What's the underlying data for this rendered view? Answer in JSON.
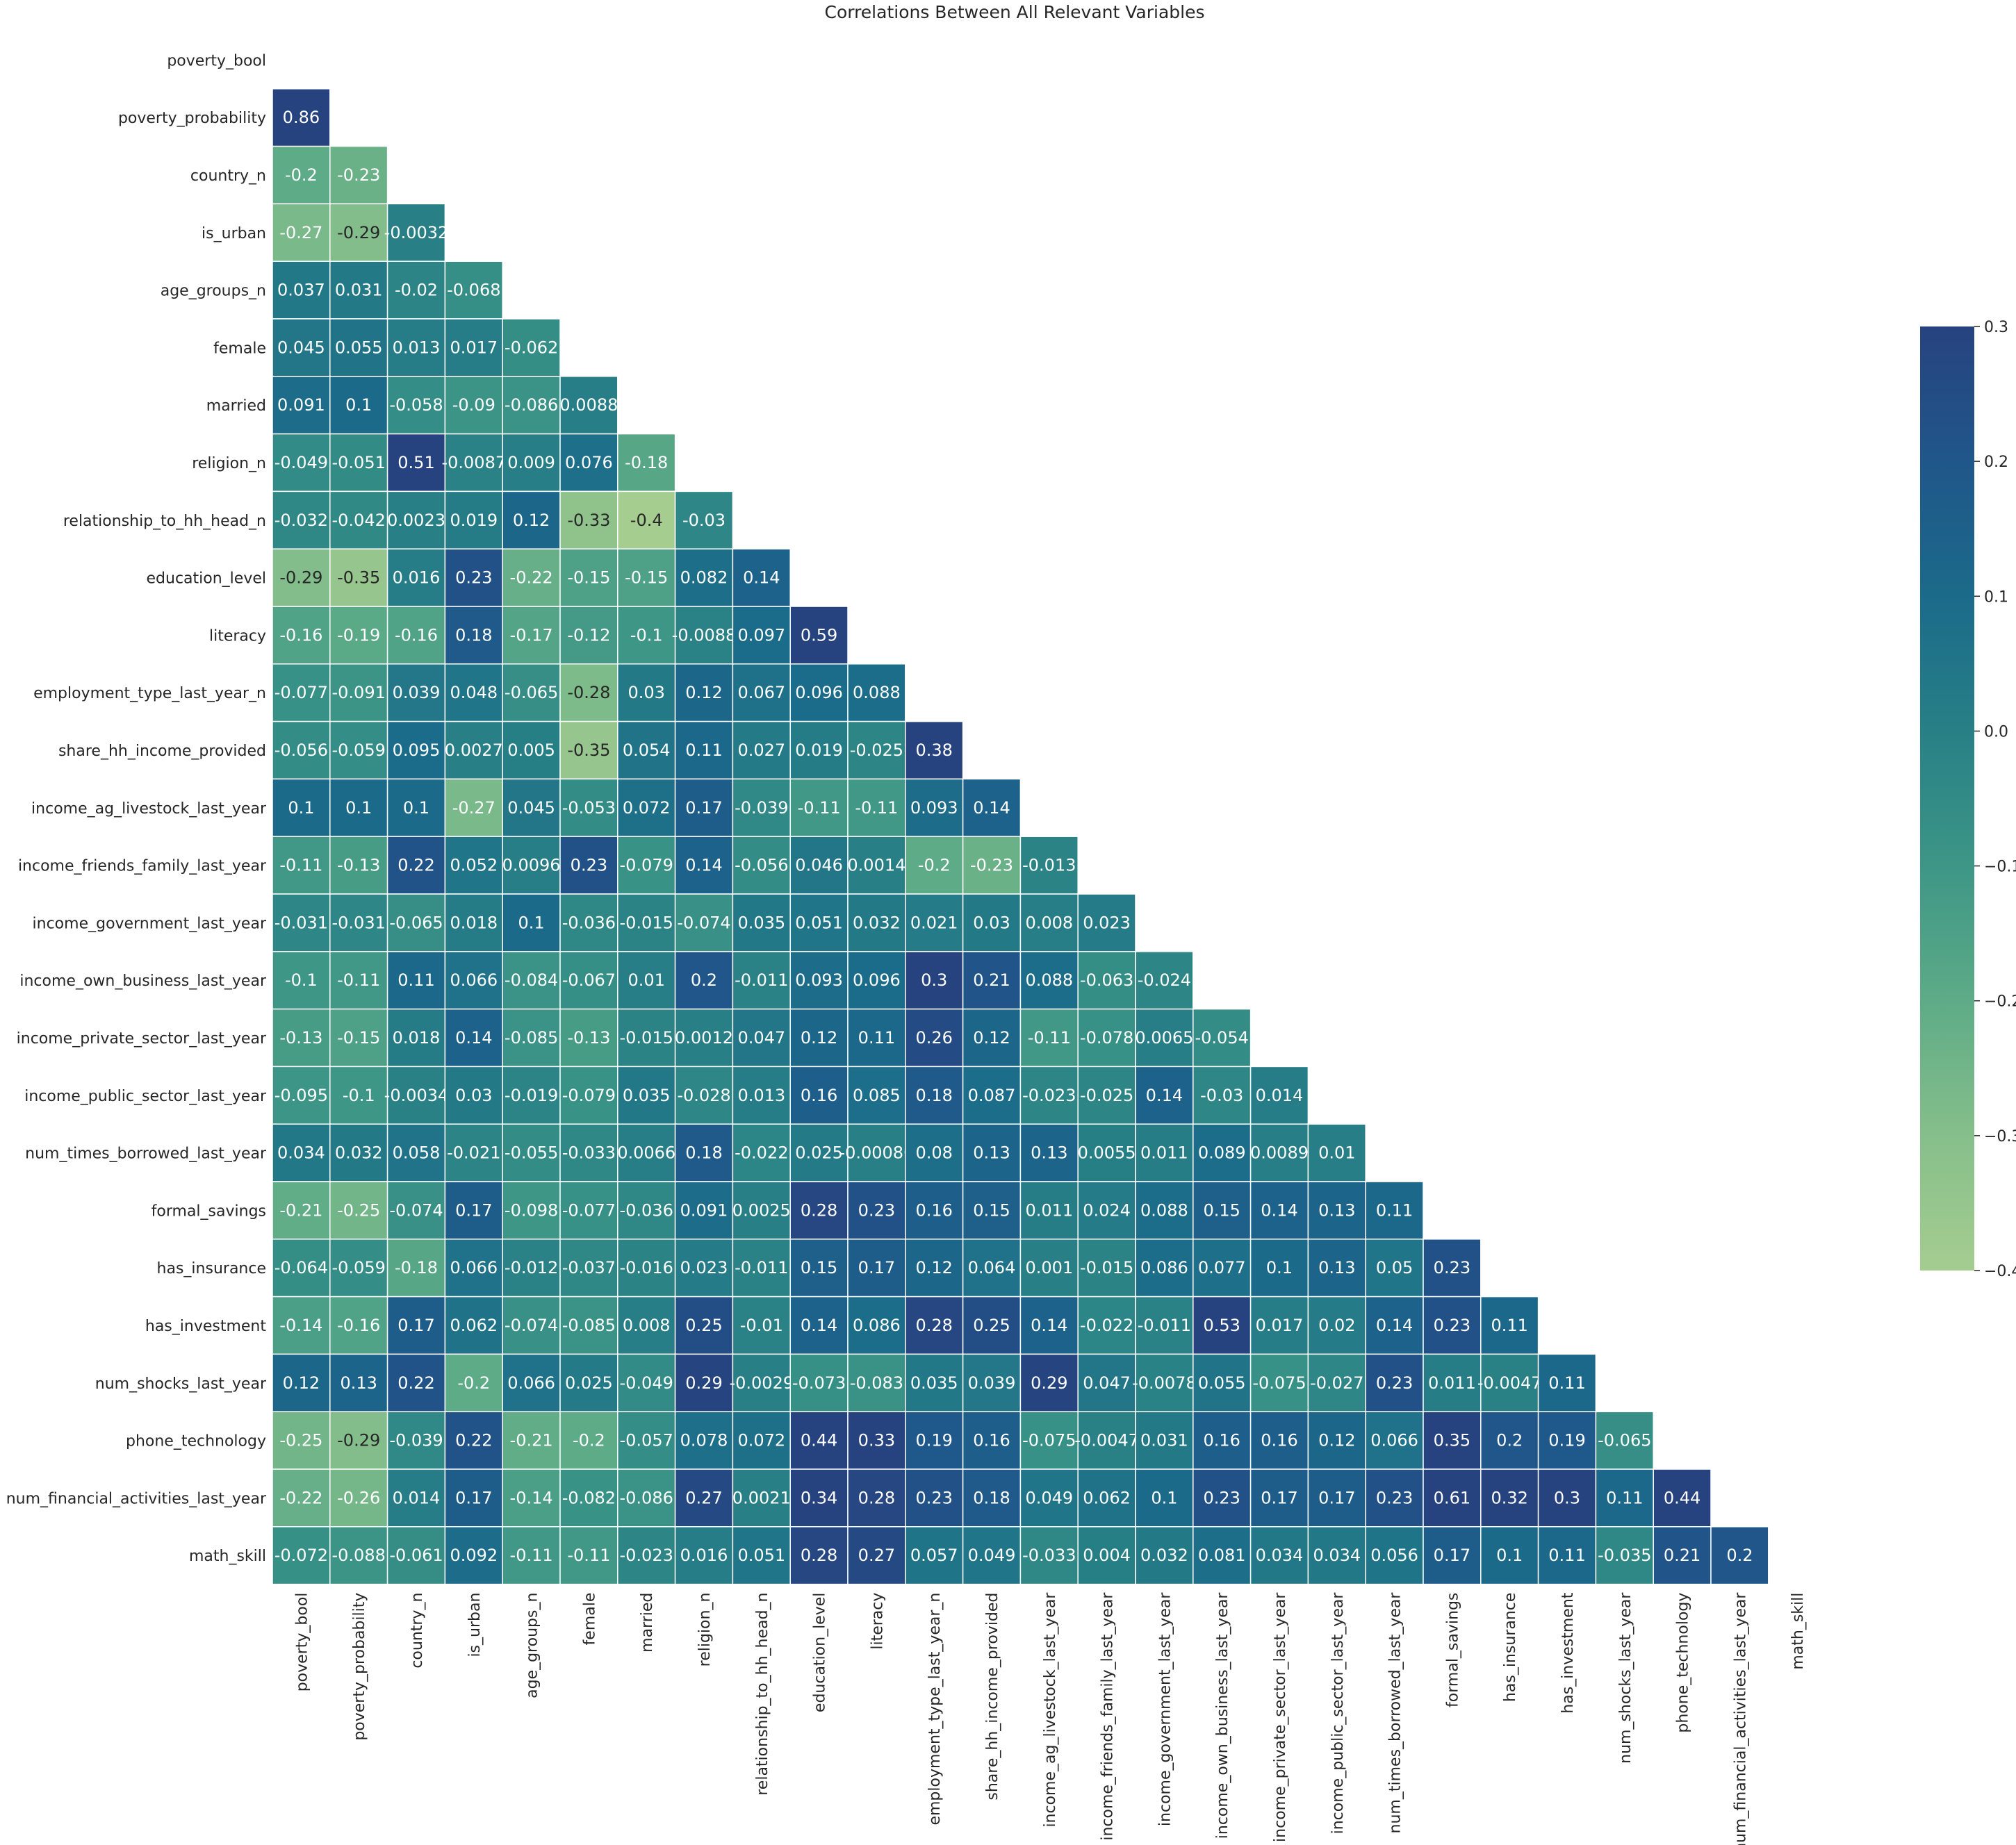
{
  "chart_data": {
    "type": "heatmap",
    "title": "Correlations Between All Relevant Variables",
    "variables": [
      "poverty_bool",
      "poverty_probability",
      "country_n",
      "is_urban",
      "age_groups_n",
      "female",
      "married",
      "religion_n",
      "relationship_to_hh_head_n",
      "education_level",
      "literacy",
      "employment_type_last_year_n",
      "share_hh_income_provided",
      "income_ag_livestock_last_year",
      "income_friends_family_last_year",
      "income_government_last_year",
      "income_own_business_last_year",
      "income_private_sector_last_year",
      "income_public_sector_last_year",
      "num_times_borrowed_last_year",
      "formal_savings",
      "has_insurance",
      "has_investment",
      "num_shocks_last_year",
      "phone_technology",
      "num_financial_activities_last_year",
      "math_skill"
    ],
    "mask": "lower-triangle (diagonal and upper triangle hidden)",
    "colormap": "crest",
    "vmin": -0.4,
    "vmax": 0.3,
    "colorbar_ticks": [
      0.3,
      0.2,
      0.1,
      0.0,
      -0.1,
      -0.2,
      -0.3,
      -0.4
    ],
    "colorbar_tick_labels": [
      "0.3",
      "0.2",
      "0.1",
      "0.0",
      "−0.1",
      "−0.2",
      "−0.3",
      "−0.4"
    ],
    "annotations": [
      [],
      [
        "0.86"
      ],
      [
        "-0.2",
        "-0.23"
      ],
      [
        "-0.27",
        "-0.29",
        "-0.0032"
      ],
      [
        "0.037",
        "0.031",
        "-0.02",
        "-0.068"
      ],
      [
        "0.045",
        "0.055",
        "0.013",
        "0.017",
        "-0.062"
      ],
      [
        "0.091",
        "0.1",
        "-0.058",
        "-0.09",
        "-0.086",
        "0.0088"
      ],
      [
        "-0.049",
        "-0.051",
        "0.51",
        "-0.0087",
        "0.009",
        "0.076",
        "-0.18"
      ],
      [
        "-0.032",
        "-0.042",
        "0.0023",
        "0.019",
        "0.12",
        "-0.33",
        "-0.4",
        "-0.03"
      ],
      [
        "-0.29",
        "-0.35",
        "0.016",
        "0.23",
        "-0.22",
        "-0.15",
        "-0.15",
        "0.082",
        "0.14"
      ],
      [
        "-0.16",
        "-0.19",
        "-0.16",
        "0.18",
        "-0.17",
        "-0.12",
        "-0.1",
        "-0.0088",
        "0.097",
        "0.59"
      ],
      [
        "-0.077",
        "-0.091",
        "0.039",
        "0.048",
        "-0.065",
        "-0.28",
        "0.03",
        "0.12",
        "0.067",
        "0.096",
        "0.088"
      ],
      [
        "-0.056",
        "-0.059",
        "0.095",
        "0.0027",
        "0.005",
        "-0.35",
        "0.054",
        "0.11",
        "0.027",
        "0.019",
        "-0.025",
        "0.38"
      ],
      [
        "0.1",
        "0.1",
        "0.1",
        "-0.27",
        "0.045",
        "-0.053",
        "0.072",
        "0.17",
        "-0.039",
        "-0.11",
        "-0.11",
        "0.093",
        "0.14"
      ],
      [
        "-0.11",
        "-0.13",
        "0.22",
        "0.052",
        "0.0096",
        "0.23",
        "-0.079",
        "0.14",
        "-0.056",
        "0.046",
        "0.0014",
        "-0.2",
        "-0.23",
        "-0.013"
      ],
      [
        "-0.031",
        "-0.031",
        "-0.065",
        "0.018",
        "0.1",
        "-0.036",
        "-0.015",
        "-0.074",
        "0.035",
        "0.051",
        "0.032",
        "0.021",
        "0.03",
        "0.008",
        "0.023"
      ],
      [
        "-0.1",
        "-0.11",
        "0.11",
        "0.066",
        "-0.084",
        "-0.067",
        "0.01",
        "0.2",
        "-0.011",
        "0.093",
        "0.096",
        "0.3",
        "0.21",
        "0.088",
        "-0.063",
        "-0.024"
      ],
      [
        "-0.13",
        "-0.15",
        "0.018",
        "0.14",
        "-0.085",
        "-0.13",
        "-0.015",
        "0.0012",
        "0.047",
        "0.12",
        "0.11",
        "0.26",
        "0.12",
        "-0.11",
        "-0.078",
        "0.0065",
        "-0.054"
      ],
      [
        "-0.095",
        "-0.1",
        "-0.0034",
        "0.03",
        "-0.019",
        "-0.079",
        "0.035",
        "-0.028",
        "0.013",
        "0.16",
        "0.085",
        "0.18",
        "0.087",
        "-0.023",
        "-0.025",
        "0.14",
        "-0.03",
        "0.014"
      ],
      [
        "0.034",
        "0.032",
        "0.058",
        "-0.021",
        "-0.055",
        "-0.033",
        "0.0066",
        "0.18",
        "-0.022",
        "0.025",
        "-0.00086",
        "0.08",
        "0.13",
        "0.13",
        "0.0055",
        "0.011",
        "0.089",
        "0.0089",
        "0.01"
      ],
      [
        "-0.21",
        "-0.25",
        "-0.074",
        "0.17",
        "-0.098",
        "-0.077",
        "-0.036",
        "0.091",
        "0.0025",
        "0.28",
        "0.23",
        "0.16",
        "0.15",
        "0.011",
        "0.024",
        "0.088",
        "0.15",
        "0.14",
        "0.13",
        "0.11"
      ],
      [
        "-0.064",
        "-0.059",
        "-0.18",
        "0.066",
        "-0.012",
        "-0.037",
        "-0.016",
        "0.023",
        "-0.011",
        "0.15",
        "0.17",
        "0.12",
        "0.064",
        "0.001",
        "-0.015",
        "0.086",
        "0.077",
        "0.1",
        "0.13",
        "0.05",
        "0.23"
      ],
      [
        "-0.14",
        "-0.16",
        "0.17",
        "0.062",
        "-0.074",
        "-0.085",
        "0.008",
        "0.25",
        "-0.01",
        "0.14",
        "0.086",
        "0.28",
        "0.25",
        "0.14",
        "-0.022",
        "-0.011",
        "0.53",
        "0.017",
        "0.02",
        "0.14",
        "0.23",
        "0.11"
      ],
      [
        "0.12",
        "0.13",
        "0.22",
        "-0.2",
        "0.066",
        "0.025",
        "-0.049",
        "0.29",
        "-0.0029",
        "-0.073",
        "-0.083",
        "0.035",
        "0.039",
        "0.29",
        "0.047",
        "-0.0078",
        "0.055",
        "-0.075",
        "-0.027",
        "0.23",
        "0.011",
        "-0.0047",
        "0.11"
      ],
      [
        "-0.25",
        "-0.29",
        "-0.039",
        "0.22",
        "-0.21",
        "-0.2",
        "-0.057",
        "0.078",
        "0.072",
        "0.44",
        "0.33",
        "0.19",
        "0.16",
        "-0.075",
        "-0.0047",
        "0.031",
        "0.16",
        "0.16",
        "0.12",
        "0.066",
        "0.35",
        "0.2",
        "0.19",
        "-0.065"
      ],
      [
        "-0.22",
        "-0.26",
        "0.014",
        "0.17",
        "-0.14",
        "-0.082",
        "-0.086",
        "0.27",
        "0.0021",
        "0.34",
        "0.28",
        "0.23",
        "0.18",
        "0.049",
        "0.062",
        "0.1",
        "0.23",
        "0.17",
        "0.17",
        "0.23",
        "0.61",
        "0.32",
        "0.3",
        "0.11",
        "0.44"
      ],
      [
        "-0.072",
        "-0.088",
        "-0.061",
        "0.092",
        "-0.11",
        "-0.11",
        "-0.023",
        "0.016",
        "0.051",
        "0.28",
        "0.27",
        "0.057",
        "0.049",
        "-0.033",
        "0.004",
        "0.032",
        "0.081",
        "0.034",
        "0.034",
        "0.056",
        "0.17",
        "0.1",
        "0.11",
        "-0.035",
        "0.21",
        "0.2"
      ]
    ]
  }
}
